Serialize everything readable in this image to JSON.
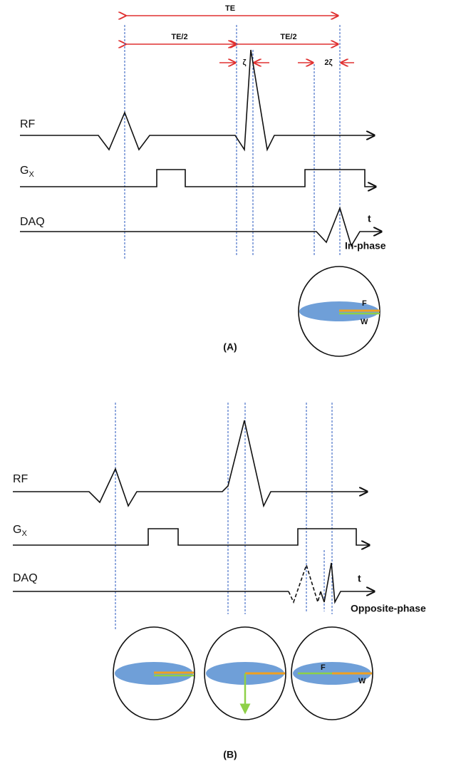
{
  "panel_a": {
    "timing": {
      "te": "TE",
      "te_half_1": "TE/2",
      "te_half_2": "TE/2",
      "zeta": "ζ",
      "two_zeta": "2ζ"
    },
    "rows": {
      "rf": "RF",
      "gx": {
        "main": "G",
        "sub": "X"
      },
      "daq": "DAQ"
    },
    "time_axis": "t",
    "phase": "In-phase",
    "vectors": {
      "fat": "F",
      "water": "W"
    },
    "caption": "(A)"
  },
  "panel_b": {
    "rows": {
      "rf": "RF",
      "gx": {
        "main": "G",
        "sub": "X"
      },
      "daq": "DAQ"
    },
    "time_axis": "t",
    "phase": "Opposite-phase",
    "vectors": {
      "fat": "F",
      "water": "W"
    },
    "caption": "(B)"
  }
}
